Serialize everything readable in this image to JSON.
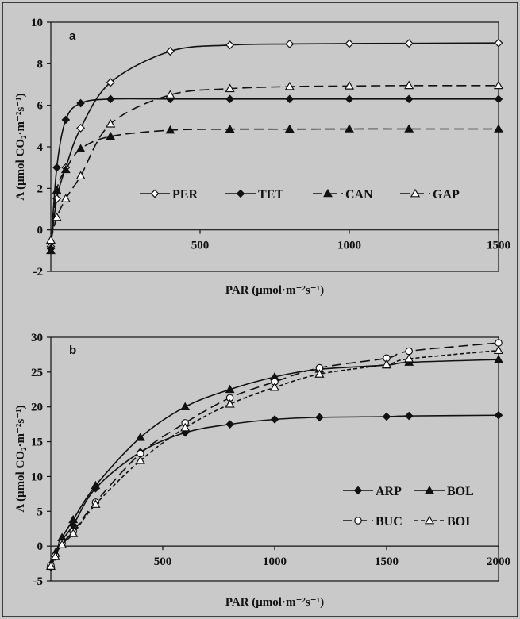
{
  "chart_data": [
    {
      "type": "line",
      "panel_label": "a",
      "xlabel": "PAR (μmol·m⁻²s⁻¹)",
      "ylabel": "A (μmol CO₂·m⁻²s⁻¹)",
      "xlim": [
        0,
        1500
      ],
      "ylim": [
        -2,
        10
      ],
      "xticks": [
        500,
        1000,
        1500
      ],
      "yticks": [
        -2,
        0,
        2,
        4,
        6,
        8,
        10
      ],
      "grid": false,
      "legend_position": "center, inside lower half",
      "series": [
        {
          "name": "PER",
          "marker": "diamond-open",
          "line": "solid",
          "x": [
            0,
            20,
            50,
            100,
            200,
            400,
            600,
            800,
            1000,
            1200,
            1500
          ],
          "y": [
            -0.8,
            1.5,
            3.0,
            4.9,
            7.1,
            8.6,
            8.9,
            8.95,
            8.97,
            8.98,
            9.0
          ]
        },
        {
          "name": "TET",
          "marker": "diamond-filled",
          "line": "solid",
          "x": [
            0,
            20,
            50,
            100,
            200,
            400,
            600,
            800,
            1000,
            1200,
            1500
          ],
          "y": [
            -0.9,
            3.0,
            5.3,
            6.1,
            6.3,
            6.3,
            6.3,
            6.3,
            6.3,
            6.3,
            6.3
          ]
        },
        {
          "name": "CAN",
          "marker": "triangle-filled",
          "line": "dashed",
          "x": [
            0,
            20,
            50,
            100,
            200,
            400,
            600,
            800,
            1000,
            1200,
            1500
          ],
          "y": [
            -1.0,
            1.9,
            2.9,
            3.9,
            4.5,
            4.8,
            4.85,
            4.85,
            4.86,
            4.86,
            4.86
          ]
        },
        {
          "name": "GAP",
          "marker": "triangle-open",
          "line": "dashed",
          "x": [
            0,
            20,
            50,
            100,
            200,
            400,
            600,
            800,
            1000,
            1200,
            1500
          ],
          "y": [
            -0.5,
            0.6,
            1.5,
            2.6,
            5.1,
            6.5,
            6.8,
            6.9,
            6.93,
            6.95,
            6.95
          ]
        }
      ]
    },
    {
      "type": "line",
      "panel_label": "b",
      "xlabel": "PAR (μmol·m⁻²s⁻¹)",
      "ylabel": "A (μmol CO₂·m⁻²s⁻¹)",
      "xlim": [
        0,
        2000
      ],
      "ylim": [
        -5,
        30
      ],
      "xticks": [
        500,
        1000,
        1500,
        2000
      ],
      "yticks": [
        -5,
        0,
        5,
        10,
        15,
        20,
        25,
        30
      ],
      "grid": false,
      "legend_position": "bottom-right",
      "series": [
        {
          "name": "ARP",
          "marker": "diamond-filled",
          "line": "solid",
          "x": [
            0,
            20,
            50,
            100,
            200,
            400,
            600,
            800,
            1000,
            1200,
            1500,
            1600,
            2000
          ],
          "y": [
            -3.0,
            -1.5,
            0.8,
            3.0,
            8.3,
            13.5,
            16.3,
            17.5,
            18.2,
            18.5,
            18.6,
            18.7,
            18.8
          ]
        },
        {
          "name": "BOL",
          "marker": "triangle-filled",
          "line": "solid",
          "x": [
            0,
            20,
            50,
            100,
            200,
            400,
            600,
            800,
            1000,
            1200,
            1500,
            1600,
            2000
          ],
          "y": [
            -2.6,
            -1.0,
            1.2,
            3.8,
            8.7,
            15.6,
            20.0,
            22.5,
            24.3,
            25.4,
            26.0,
            26.4,
            26.8
          ]
        },
        {
          "name": "BUC",
          "marker": "circle-open",
          "line": "dashed",
          "x": [
            0,
            20,
            50,
            100,
            200,
            400,
            600,
            800,
            1000,
            1200,
            1500,
            1600,
            2000
          ],
          "y": [
            -2.8,
            -1.4,
            0.4,
            2.1,
            6.3,
            13.3,
            17.7,
            21.3,
            23.6,
            25.6,
            27.0,
            28.0,
            29.2
          ]
        },
        {
          "name": "BOI",
          "marker": "triangle-open",
          "line": "dotted",
          "x": [
            0,
            20,
            50,
            100,
            200,
            400,
            600,
            800,
            1000,
            1200,
            1500,
            1600,
            2000
          ],
          "y": [
            -2.9,
            -1.5,
            0.2,
            1.8,
            6.0,
            12.3,
            17.0,
            20.4,
            22.8,
            24.7,
            26.1,
            26.9,
            28.1
          ]
        }
      ]
    }
  ]
}
